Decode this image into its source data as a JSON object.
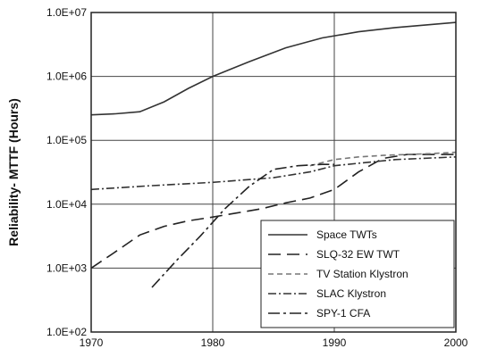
{
  "chart_data": {
    "type": "line",
    "title": "",
    "xlabel": "",
    "ylabel": "Reliability- MTTF (Hours)",
    "xscale": "linear",
    "yscale": "log",
    "xlim": [
      1970,
      2000
    ],
    "ylim": [
      100,
      10000000
    ],
    "grid": true,
    "legend_position": "bottom-right",
    "x_ticks": [
      "1970",
      "1980",
      "1990",
      "2000"
    ],
    "y_ticks": [
      {
        "value": 100,
        "label": "1.0E+02"
      },
      {
        "value": 1000,
        "label": "1.0E+03"
      },
      {
        "value": 10000,
        "label": "1.0E+04"
      },
      {
        "value": 100000,
        "label": "1.0E+05"
      },
      {
        "value": 1000000,
        "label": "1.0E+06"
      },
      {
        "value": 10000000,
        "label": "1.0E+07"
      }
    ],
    "series": [
      {
        "name": "Space TWTs",
        "dash": "solid",
        "x": [
          1970,
          1972,
          1974,
          1976,
          1978,
          1980,
          1983,
          1986,
          1989,
          1992,
          1995,
          1998,
          2000
        ],
        "y": [
          250000,
          260000,
          280000,
          400000,
          650000,
          1000000,
          1700000,
          2800000,
          4000000,
          5000000,
          5800000,
          6500000,
          7000000
        ]
      },
      {
        "name": "SLQ-32 EW TWT",
        "dash": "long-dash",
        "x": [
          1970,
          1972,
          1974,
          1976,
          1978,
          1980,
          1982,
          1984,
          1986,
          1988,
          1990,
          1992,
          1994,
          1996,
          1998,
          2000
        ],
        "y": [
          1000,
          1800,
          3300,
          4500,
          5500,
          6300,
          7300,
          8500,
          10500,
          12500,
          17000,
          32000,
          52000,
          60000,
          60000,
          60000
        ]
      },
      {
        "name": "TV Station Klystron",
        "dash": "short-dash",
        "x": [
          1988,
          1990,
          1992,
          1994,
          1996,
          1998,
          2000
        ],
        "y": [
          40000,
          50000,
          55000,
          58000,
          60000,
          62000,
          65000
        ]
      },
      {
        "name": "SLAC Klystron",
        "dash": "dash-dot",
        "x": [
          1970,
          1975,
          1980,
          1985,
          1988,
          1990,
          1995,
          2000
        ],
        "y": [
          17000,
          19500,
          22000,
          26000,
          32000,
          40000,
          50000,
          55000
        ]
      },
      {
        "name": "SPY-1 CFA",
        "dash": "long-dash-dot",
        "x": [
          1975,
          1977,
          1979,
          1981,
          1983,
          1985,
          1987,
          1989,
          1990
        ],
        "y": [
          500,
          1300,
          3200,
          8500,
          19000,
          35000,
          40000,
          42000,
          42000
        ]
      }
    ],
    "legend": [
      "Space TWTs",
      "SLQ-32 EW TWT",
      "TV Station Klystron",
      "SLAC Klystron",
      "SPY-1 CFA"
    ]
  }
}
